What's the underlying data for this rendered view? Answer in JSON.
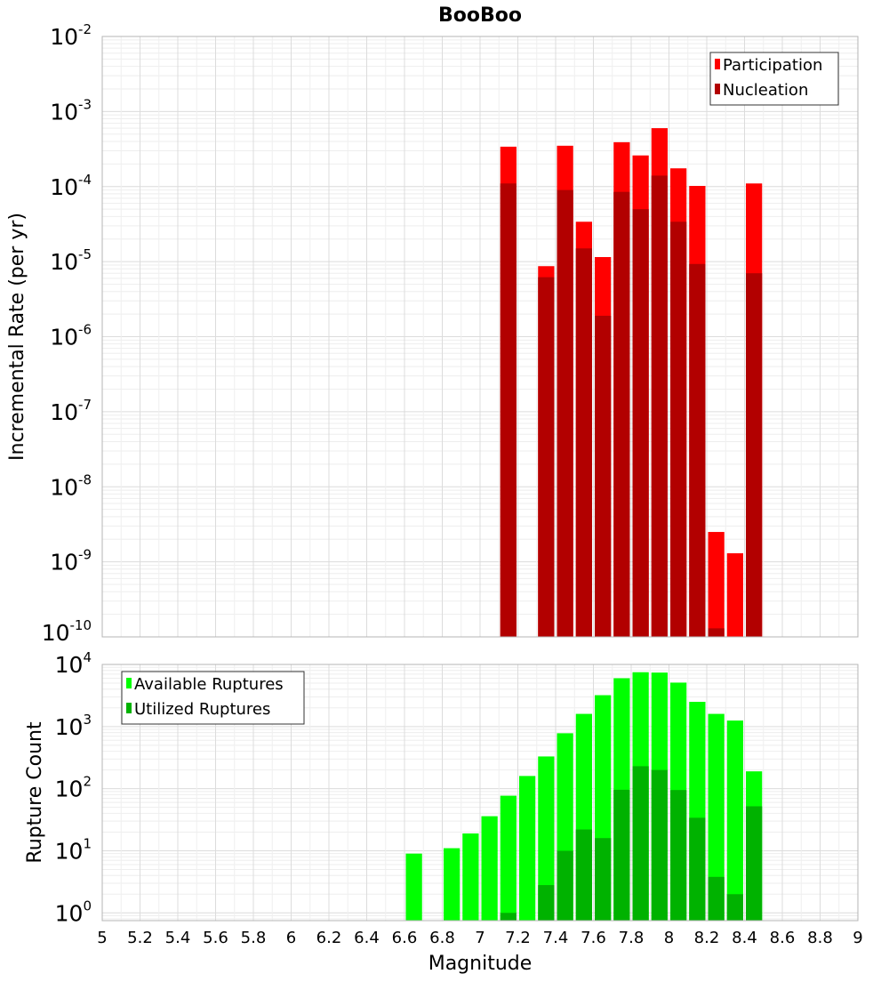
{
  "chart_data": [
    {
      "type": "bar",
      "title": "BooBoo",
      "xlabel": "",
      "ylabel": "Incremental Rate (per yr)",
      "yscale": "log",
      "ylim": [
        1e-10,
        0.01
      ],
      "xlim": [
        5,
        9
      ],
      "grid": true,
      "legend_position": "top-right",
      "bin_width": 0.1,
      "x": [
        7.15,
        7.35,
        7.45,
        7.55,
        7.65,
        7.75,
        7.85,
        7.95,
        8.05,
        8.15,
        8.25,
        8.35,
        8.45
      ],
      "series": [
        {
          "name": "Participation",
          "color": "#ff0000",
          "values": [
            0.00034,
            8.7e-06,
            0.00035,
            3.4e-05,
            1.15e-05,
            0.00039,
            0.00026,
            0.0006,
            0.000175,
            0.000102,
            2.5e-09,
            1.3e-09,
            0.00011
          ]
        },
        {
          "name": "Nucleation",
          "color": "#b20000",
          "values": [
            0.00011,
            6.2e-06,
            9e-05,
            1.5e-05,
            1.9e-06,
            8.5e-05,
            5e-05,
            0.00014,
            3.4e-05,
            9.3e-06,
            1.3e-10,
            null,
            7e-06
          ]
        }
      ]
    },
    {
      "type": "bar",
      "xlabel": "Magnitude",
      "ylabel": "Rupture Count",
      "yscale": "log",
      "ylim": [
        0.75,
        10000
      ],
      "xlim": [
        5,
        9
      ],
      "grid": true,
      "legend_position": "top-left",
      "bin_width": 0.1,
      "x_ticks": [
        "5",
        "5.2",
        "5.4",
        "5.6",
        "5.8",
        "6",
        "6.2",
        "6.4",
        "6.6",
        "6.8",
        "7",
        "7.2",
        "7.4",
        "7.6",
        "7.8",
        "8",
        "8.2",
        "8.4",
        "8.6",
        "8.8",
        "9"
      ],
      "x": [
        6.65,
        6.85,
        6.95,
        7.05,
        7.15,
        7.25,
        7.35,
        7.45,
        7.55,
        7.65,
        7.75,
        7.85,
        7.95,
        8.05,
        8.15,
        8.25,
        8.35,
        8.45
      ],
      "series": [
        {
          "name": "Available Ruptures",
          "color": "#00ff00",
          "values": [
            9,
            11,
            19,
            36,
            77,
            160,
            330,
            780,
            1600,
            3200,
            6000,
            7500,
            7400,
            5100,
            2500,
            1600,
            1250,
            190
          ]
        },
        {
          "name": "Utilized Ruptures",
          "color": "#00b200",
          "values": [
            null,
            null,
            null,
            null,
            1,
            null,
            2.8,
            10,
            22,
            16,
            96,
            230,
            200,
            95,
            34,
            3.8,
            2,
            52
          ]
        }
      ]
    }
  ]
}
